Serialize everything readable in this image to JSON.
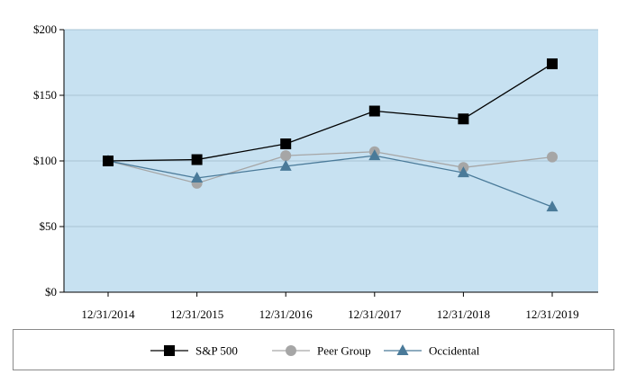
{
  "chart_data": {
    "type": "line",
    "categories": [
      "12/31/2014",
      "12/31/2015",
      "12/31/2016",
      "12/31/2017",
      "12/31/2018",
      "12/31/2019"
    ],
    "ylim": [
      0,
      200
    ],
    "y_ticks": [
      0,
      50,
      100,
      150,
      200
    ],
    "y_tick_labels": [
      "$0",
      "$50",
      "$100",
      "$150",
      "$200"
    ],
    "grid": true,
    "plot_background": "#c7e1f1",
    "legend_position": "bottom",
    "series": [
      {
        "name": "S&P 500",
        "values": [
          100,
          101,
          113,
          138,
          132,
          174
        ],
        "color": "#000000",
        "marker": "square"
      },
      {
        "name": "Peer Group",
        "values": [
          100,
          83,
          104,
          107,
          95,
          103
        ],
        "color": "#a6a6a6",
        "marker": "circle"
      },
      {
        "name": "Occidental",
        "values": [
          100,
          87,
          96,
          104,
          91,
          65
        ],
        "color": "#4a7a99",
        "marker": "triangle"
      }
    ]
  }
}
